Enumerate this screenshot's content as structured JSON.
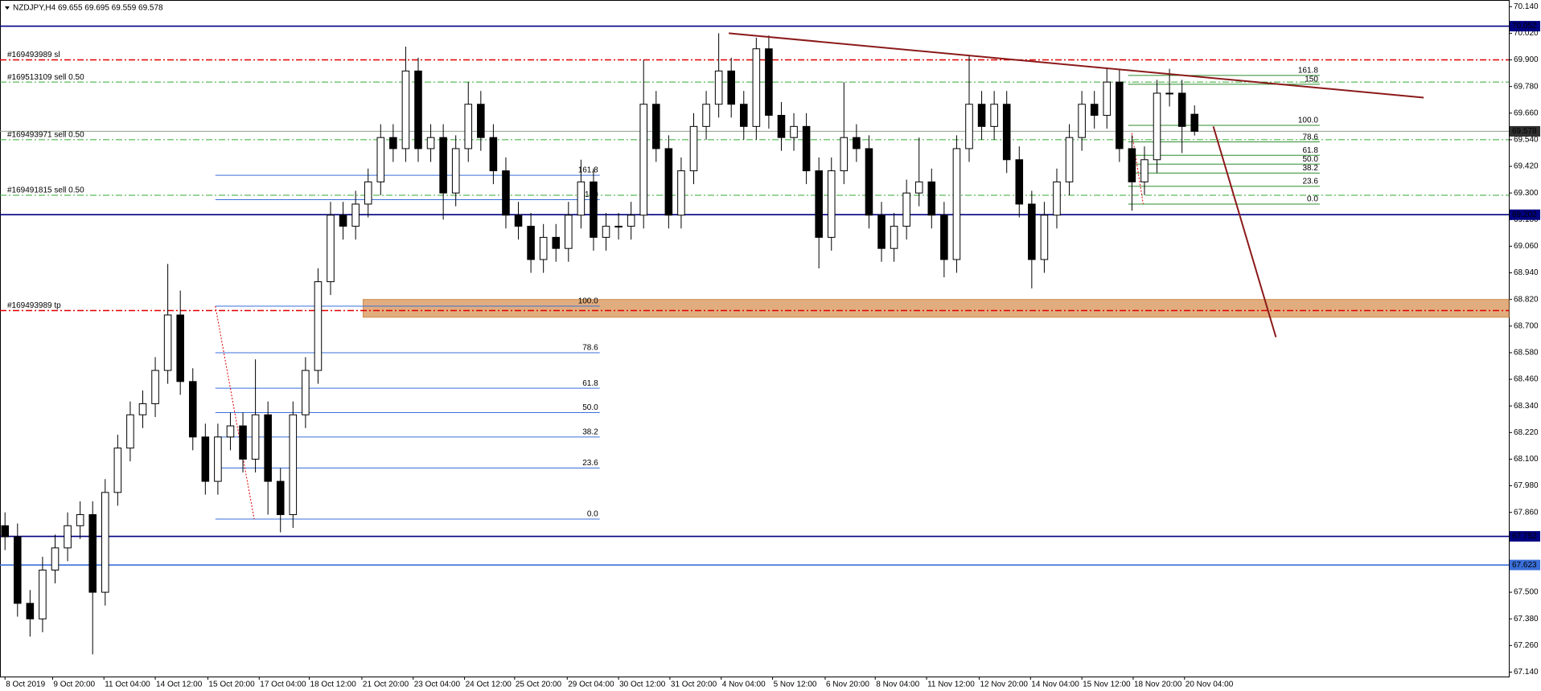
{
  "chart_data": {
    "type": "candlestick",
    "title": "NZDJPY,H4  69.655 69.695 69.559 69.578",
    "xlim": [
      -0.4,
      120.1
    ],
    "ylim": [
      67.12,
      70.17
    ],
    "open": [
      67.8,
      67.75,
      67.45,
      67.38,
      67.6,
      67.7,
      67.8,
      67.85,
      67.5,
      67.95,
      68.15,
      68.3,
      68.35,
      68.5,
      68.75,
      68.45,
      68.2,
      68.0,
      68.2,
      68.25,
      68.1,
      68.3,
      68.0,
      67.85,
      68.3,
      68.5,
      68.9,
      69.2,
      69.15,
      69.25,
      69.35,
      69.55,
      69.5,
      69.85,
      69.5,
      69.55,
      69.3,
      69.5,
      69.7,
      69.55,
      69.4,
      69.2,
      69.15,
      69.0,
      69.1,
      69.05,
      69.2,
      69.35,
      69.1,
      69.15,
      69.15,
      69.2,
      69.7,
      69.5,
      69.2,
      69.4,
      69.6,
      69.7,
      69.85,
      69.7,
      69.6,
      69.95,
      69.65,
      69.55,
      69.6,
      69.4,
      69.1,
      69.4,
      69.55,
      69.5,
      69.2,
      69.05,
      69.15,
      69.3,
      69.35,
      69.2,
      69.0,
      69.5,
      69.7,
      69.6,
      69.7,
      69.45,
      69.25,
      69.0,
      69.2,
      69.35,
      69.55,
      69.7,
      69.65,
      69.8,
      69.5,
      69.35,
      69.45,
      69.75,
      69.75,
      69.655
    ],
    "high": [
      67.86,
      67.81,
      67.51,
      67.66,
      67.76,
      67.86,
      67.91,
      67.91,
      68.01,
      68.21,
      68.36,
      68.41,
      68.56,
      68.98,
      68.86,
      68.51,
      68.26,
      68.26,
      68.31,
      68.31,
      68.55,
      68.36,
      68.06,
      68.36,
      68.56,
      68.96,
      69.26,
      69.26,
      69.31,
      69.41,
      69.61,
      69.61,
      69.96,
      69.91,
      69.61,
      69.61,
      69.56,
      69.8,
      69.76,
      69.61,
      69.46,
      69.26,
      69.21,
      69.16,
      69.16,
      69.26,
      69.45,
      69.41,
      69.21,
      69.21,
      69.26,
      69.9,
      69.76,
      69.56,
      69.46,
      69.66,
      69.76,
      70.02,
      69.91,
      69.76,
      70.0,
      70.01,
      69.71,
      69.66,
      69.66,
      69.46,
      69.46,
      69.8,
      69.61,
      69.56,
      69.26,
      69.21,
      69.36,
      69.55,
      69.41,
      69.26,
      69.56,
      69.92,
      69.76,
      69.76,
      69.76,
      69.51,
      69.31,
      69.26,
      69.41,
      69.61,
      69.76,
      69.76,
      69.86,
      69.86,
      69.56,
      69.51,
      69.81,
      69.86,
      69.81,
      69.695
    ],
    "low": [
      67.69,
      67.39,
      67.3,
      67.32,
      67.54,
      67.64,
      67.74,
      67.22,
      67.44,
      67.89,
      68.09,
      68.24,
      68.29,
      68.44,
      68.39,
      68.14,
      67.94,
      67.94,
      68.14,
      68.04,
      68.04,
      67.85,
      67.77,
      67.79,
      68.24,
      68.44,
      68.84,
      69.09,
      69.09,
      69.19,
      69.29,
      69.44,
      69.44,
      69.44,
      69.44,
      69.18,
      69.24,
      69.44,
      69.49,
      69.34,
      69.14,
      69.09,
      68.94,
      68.94,
      68.99,
      68.99,
      69.14,
      69.04,
      69.04,
      69.09,
      69.09,
      69.14,
      69.44,
      69.14,
      69.14,
      69.34,
      69.54,
      69.64,
      69.64,
      69.54,
      69.54,
      69.59,
      69.49,
      69.49,
      69.34,
      68.96,
      69.04,
      69.34,
      69.44,
      69.14,
      68.99,
      68.99,
      69.09,
      69.24,
      69.14,
      68.92,
      68.94,
      69.44,
      69.54,
      69.54,
      69.39,
      69.19,
      68.87,
      68.94,
      69.14,
      69.29,
      69.49,
      69.59,
      69.59,
      69.44,
      69.22,
      69.29,
      69.39,
      69.69,
      69.48,
      69.559
    ],
    "close": [
      67.75,
      67.45,
      67.38,
      67.6,
      67.7,
      67.8,
      67.85,
      67.5,
      67.95,
      68.15,
      68.3,
      68.35,
      68.5,
      68.75,
      68.45,
      68.2,
      68.0,
      68.2,
      68.25,
      68.1,
      68.3,
      68.0,
      67.85,
      68.3,
      68.5,
      68.9,
      69.2,
      69.15,
      69.25,
      69.35,
      69.55,
      69.5,
      69.85,
      69.5,
      69.55,
      69.3,
      69.5,
      69.7,
      69.55,
      69.4,
      69.2,
      69.15,
      69.0,
      69.1,
      69.05,
      69.2,
      69.35,
      69.1,
      69.15,
      69.15,
      69.2,
      69.7,
      69.5,
      69.2,
      69.4,
      69.6,
      69.7,
      69.85,
      69.7,
      69.6,
      69.95,
      69.65,
      69.55,
      69.6,
      69.4,
      69.1,
      69.4,
      69.55,
      69.5,
      69.2,
      69.05,
      69.15,
      69.3,
      69.35,
      69.2,
      69.0,
      69.5,
      69.7,
      69.6,
      69.7,
      69.45,
      69.25,
      69.0,
      69.2,
      69.35,
      69.55,
      69.7,
      69.65,
      69.8,
      69.5,
      69.35,
      69.45,
      69.75,
      69.75,
      69.6,
      69.578
    ],
    "up_color": "#ffffff",
    "down_color": "#000000",
    "yticks": [
      {
        "value": 70.14,
        "label": "70.140"
      },
      {
        "value": 70.02,
        "label": "70.020"
      },
      {
        "value": 69.9,
        "label": "69.900"
      },
      {
        "value": 69.78,
        "label": "69.780"
      },
      {
        "value": 69.66,
        "label": "69.660"
      },
      {
        "value": 69.54,
        "label": "69.540"
      },
      {
        "value": 69.42,
        "label": "69.420"
      },
      {
        "value": 69.3,
        "label": "69.300"
      },
      {
        "value": 69.18,
        "label": "69.180"
      },
      {
        "value": 69.06,
        "label": "69.060"
      },
      {
        "value": 68.94,
        "label": "68.940"
      },
      {
        "value": 68.82,
        "label": "68.820"
      },
      {
        "value": 68.7,
        "label": "68.700"
      },
      {
        "value": 68.58,
        "label": "68.580"
      },
      {
        "value": 68.46,
        "label": "68.460"
      },
      {
        "value": 68.34,
        "label": "68.340"
      },
      {
        "value": 68.22,
        "label": "68.220"
      },
      {
        "value": 68.1,
        "label": "68.100"
      },
      {
        "value": 67.98,
        "label": "67.980"
      },
      {
        "value": 67.86,
        "label": "67.860"
      },
      {
        "value": 67.74,
        "label": "67.740"
      },
      {
        "value": 67.62,
        "label": "67.620"
      },
      {
        "value": 67.5,
        "label": "67.500"
      },
      {
        "value": 67.38,
        "label": "67.380"
      },
      {
        "value": 67.26,
        "label": "67.260"
      },
      {
        "value": 67.14,
        "label": "67.140"
      }
    ],
    "xticks": [
      {
        "value": 0,
        "label": "8 Oct 2019"
      },
      {
        "value": 3.8,
        "label": "9 Oct 20:00"
      },
      {
        "value": 7.9,
        "label": "11 Oct 04:00"
      },
      {
        "value": 12,
        "label": "14 Oct 12:00"
      },
      {
        "value": 16.2,
        "label": "15 Oct 20:00"
      },
      {
        "value": 20.3,
        "label": "17 Oct 04:00"
      },
      {
        "value": 24.3,
        "label": "18 Oct 12:00"
      },
      {
        "value": 28.5,
        "label": "21 Oct 20:00"
      },
      {
        "value": 32.6,
        "label": "23 Oct 04:00"
      },
      {
        "value": 36.7,
        "label": "24 Oct 12:00"
      },
      {
        "value": 40.7,
        "label": "25 Oct 20:00"
      },
      {
        "value": 44.9,
        "label": "29 Oct 04:00"
      },
      {
        "value": 49,
        "label": "30 Oct 12:00"
      },
      {
        "value": 53.1,
        "label": "31 Oct 20:00"
      },
      {
        "value": 57.2,
        "label": "4 Nov 04:00"
      },
      {
        "value": 61.3,
        "label": "5 Nov 12:00"
      },
      {
        "value": 65.5,
        "label": "6 Nov 20:00"
      },
      {
        "value": 69.5,
        "label": "8 Nov 04:00"
      },
      {
        "value": 73.6,
        "label": "11 Nov 12:00"
      },
      {
        "value": 77.8,
        "label": "12 Nov 20:00"
      },
      {
        "value": 81.9,
        "label": "14 Nov 04:00"
      },
      {
        "value": 86,
        "label": "15 Nov 12:00"
      },
      {
        "value": 90.1,
        "label": "18 Nov 20:00"
      },
      {
        "value": 94.2,
        "label": "20 Nov 04:00"
      }
    ],
    "zone": {
      "from": 68.74,
      "to": 68.82,
      "start": 28.6,
      "color": "#e2ad7e"
    },
    "horizontal_lines": [
      {
        "price": 70.052,
        "color": "#000080"
      },
      {
        "price": 69.578,
        "color": "#8fa08f",
        "box": "#303030"
      },
      {
        "price": 69.202,
        "color": "#000080"
      },
      {
        "price": 67.752,
        "color": "#000080"
      },
      {
        "price": 67.623,
        "color": "#3a6fd8"
      }
    ],
    "orders": [
      {
        "label": "#169493989 sl",
        "price": 69.9,
        "color": "#e00000"
      },
      {
        "label": "#169513109 sell 0.50",
        "price": 69.8,
        "color": "#33aa33"
      },
      {
        "label": "#169493971 sell 0.50",
        "price": 69.54,
        "color": "#33aa33"
      },
      {
        "label": "#169491815 sell 0.50",
        "price": 69.29,
        "color": "#33aa33"
      },
      {
        "label": "#169493989 tp",
        "price": 68.77,
        "color": "#e00000"
      }
    ],
    "fibs": [
      {
        "color": "#3a6fd8",
        "start": 16.8,
        "end": 47.5,
        "swing": {
          "x": [
            16.8,
            19.9
          ],
          "y": [
            68.79,
            67.83
          ]
        },
        "levels": [
          {
            "level": 161.8,
            "price": 69.38
          },
          {
            "level": 150,
            "price": 69.27
          },
          {
            "level": {
              "value": 100,
              "label": "100.0"
            },
            "price": 68.79
          },
          {
            "level": 78.6,
            "price": 68.58
          },
          {
            "level": 61.8,
            "price": 68.42
          },
          {
            "level": {
              "value": 50,
              "label": "50.0"
            },
            "price": 68.31
          },
          {
            "level": 38.2,
            "price": 68.2
          },
          {
            "level": 23.6,
            "price": 68.06
          },
          {
            "level": {
              "value": 0,
              "label": "0.0"
            },
            "price": 67.83
          }
        ]
      },
      {
        "color": "#2e8b2e",
        "start": 89.7,
        "end": 105,
        "swing": {
          "x": [
            90,
            90.9
          ],
          "y": [
            69.57,
            69.25
          ]
        },
        "levels": [
          {
            "level": 161.8,
            "price": 69.83
          },
          {
            "level": 150,
            "price": 69.79
          },
          {
            "level": {
              "value": 100,
              "label": "100.0"
            },
            "price": 69.605
          },
          {
            "level": 78.6,
            "price": 69.53
          },
          {
            "level": 61.8,
            "price": 69.47
          },
          {
            "level": {
              "value": 50,
              "label": "50.0"
            },
            "price": 69.43
          },
          {
            "level": 38.2,
            "price": 69.39
          },
          {
            "level": 23.6,
            "price": 69.33
          },
          {
            "level": {
              "value": 0,
              "label": "0.0"
            },
            "price": 69.25
          }
        ]
      }
    ],
    "trendlines": [
      {
        "x": [
          57.8,
          113.3
        ],
        "y": [
          70.02,
          69.73
        ],
        "color": "#8b1a1a"
      },
      {
        "x": [
          96.5,
          101.5
        ],
        "y": [
          69.6,
          68.65
        ],
        "color": "#8b1a1a"
      }
    ]
  }
}
